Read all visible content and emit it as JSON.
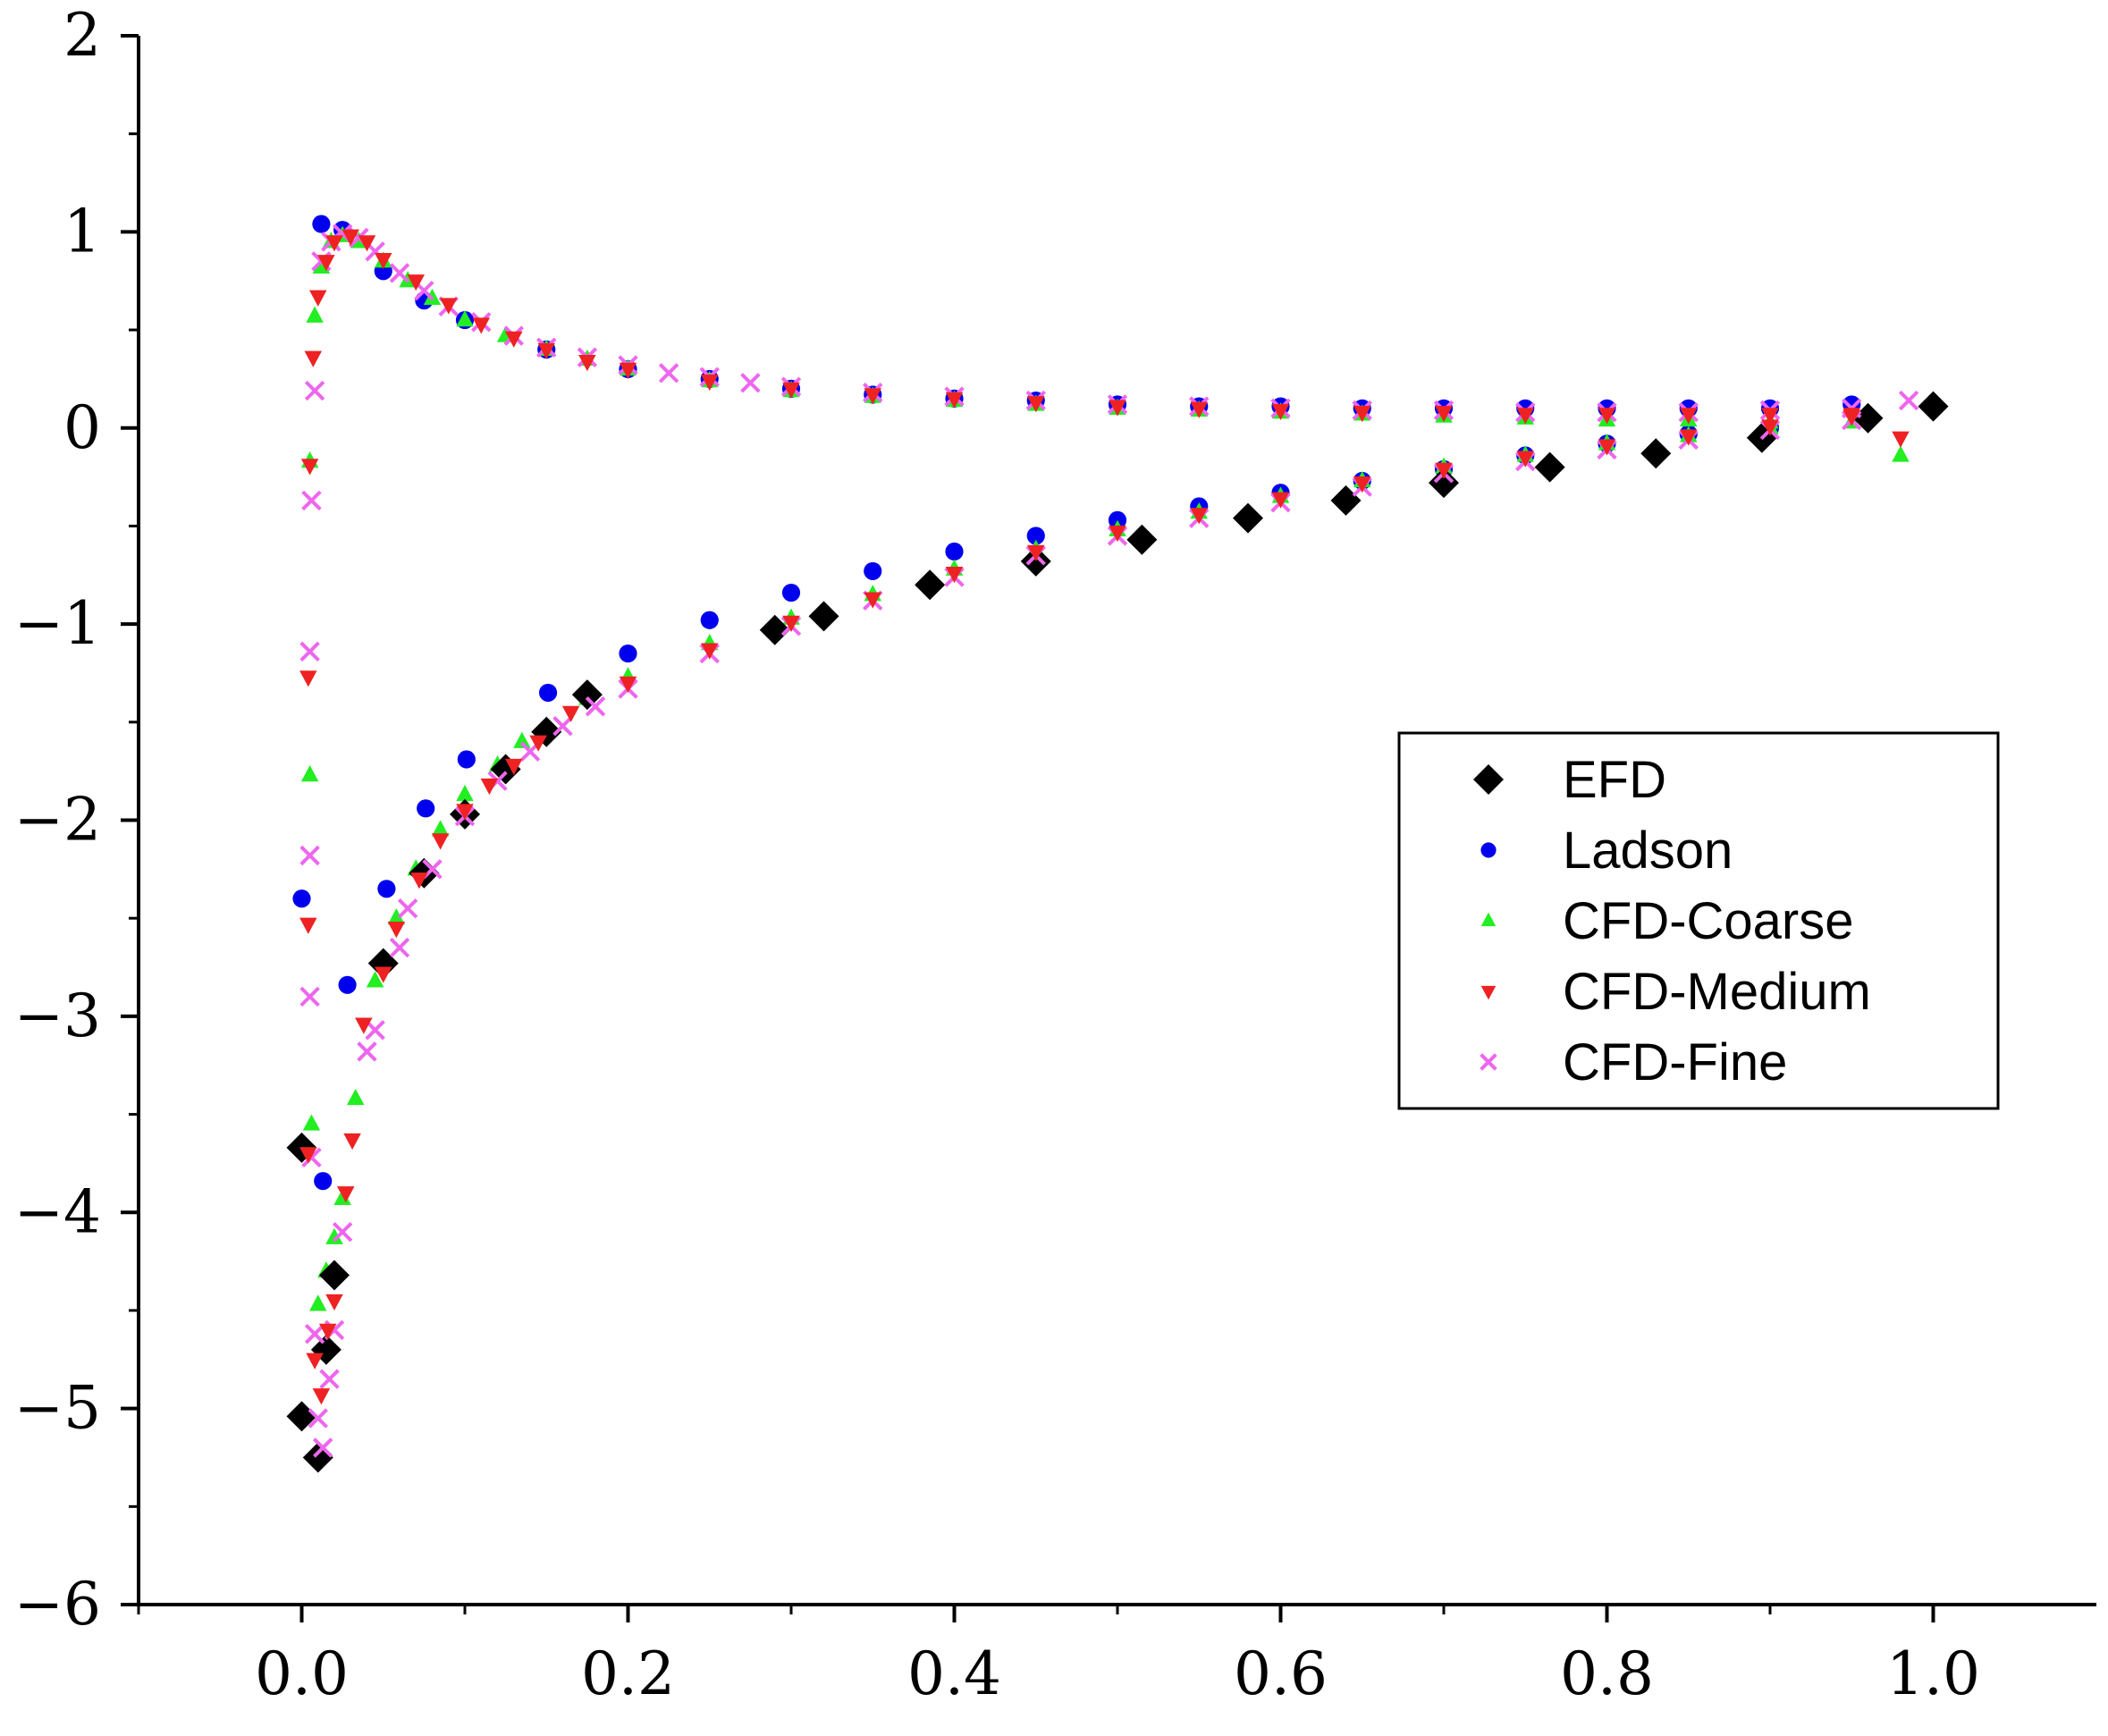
{
  "chart_data": {
    "type": "scatter",
    "xlim": [
      -0.1,
      1.1
    ],
    "ylim": [
      -6,
      2
    ],
    "x_ticks": [
      {
        "value": 0.0,
        "label": "0.0"
      },
      {
        "value": 0.2,
        "label": "0.2"
      },
      {
        "value": 0.4,
        "label": "0.4"
      },
      {
        "value": 0.6,
        "label": "0.6"
      },
      {
        "value": 0.8,
        "label": "0.8"
      },
      {
        "value": 1.0,
        "label": "1.0"
      }
    ],
    "y_ticks": [
      {
        "value": 2,
        "label": "2"
      },
      {
        "value": 1,
        "label": "1"
      },
      {
        "value": 0,
        "label": "0"
      },
      {
        "value": -1,
        "label": "−1"
      },
      {
        "value": -2,
        "label": "−2"
      },
      {
        "value": -3,
        "label": "−3"
      },
      {
        "value": -4,
        "label": "−4"
      },
      {
        "value": -5,
        "label": "−5"
      },
      {
        "value": -6,
        "label": "−6"
      }
    ],
    "grid": false,
    "legend_position": "center-right",
    "series": [
      {
        "name": "EFD",
        "marker": "diamond",
        "color": "#000000",
        "points": [
          [
            0.0,
            -3.67
          ],
          [
            0.0,
            -5.04
          ],
          [
            0.01,
            -5.25
          ],
          [
            0.015,
            -4.7
          ],
          [
            0.02,
            -4.32
          ],
          [
            0.05,
            -2.73
          ],
          [
            0.075,
            -2.27
          ],
          [
            0.1,
            -1.97
          ],
          [
            0.125,
            -1.74
          ],
          [
            0.15,
            -1.55
          ],
          [
            0.175,
            -1.36
          ],
          [
            0.29,
            -1.03
          ],
          [
            0.32,
            -0.96
          ],
          [
            0.385,
            -0.8
          ],
          [
            0.45,
            -0.68
          ],
          [
            0.515,
            -0.57
          ],
          [
            0.58,
            -0.46
          ],
          [
            0.64,
            -0.37
          ],
          [
            0.7,
            -0.28
          ],
          [
            0.765,
            -0.2
          ],
          [
            0.83,
            -0.13
          ],
          [
            0.895,
            -0.05
          ],
          [
            0.96,
            0.05
          ],
          [
            1.0,
            0.11
          ]
        ]
      },
      {
        "name": "Ladson",
        "marker": "circle",
        "color": "#0000ee",
        "points": [
          [
            0.012,
            1.04
          ],
          [
            0.025,
            1.01
          ],
          [
            0.05,
            0.8
          ],
          [
            0.075,
            0.65
          ],
          [
            0.1,
            0.55
          ],
          [
            0.15,
            0.4
          ],
          [
            0.2,
            0.3
          ],
          [
            0.25,
            0.25
          ],
          [
            0.3,
            0.2
          ],
          [
            0.35,
            0.17
          ],
          [
            0.4,
            0.15
          ],
          [
            0.45,
            0.14
          ],
          [
            0.5,
            0.12
          ],
          [
            0.55,
            0.11
          ],
          [
            0.6,
            0.11
          ],
          [
            0.65,
            0.1
          ],
          [
            0.7,
            0.1
          ],
          [
            0.75,
            0.1
          ],
          [
            0.8,
            0.1
          ],
          [
            0.85,
            0.1
          ],
          [
            0.9,
            0.1
          ],
          [
            0.95,
            0.12
          ],
          [
            0.0,
            -2.4
          ],
          [
            0.013,
            -3.84
          ],
          [
            0.028,
            -2.84
          ],
          [
            0.052,
            -2.35
          ],
          [
            0.076,
            -1.94
          ],
          [
            0.101,
            -1.69
          ],
          [
            0.151,
            -1.35
          ],
          [
            0.2,
            -1.15
          ],
          [
            0.25,
            -0.98
          ],
          [
            0.3,
            -0.84
          ],
          [
            0.35,
            -0.73
          ],
          [
            0.4,
            -0.63
          ],
          [
            0.45,
            -0.55
          ],
          [
            0.5,
            -0.47
          ],
          [
            0.55,
            -0.4
          ],
          [
            0.6,
            -0.33
          ],
          [
            0.65,
            -0.27
          ],
          [
            0.7,
            -0.21
          ],
          [
            0.75,
            -0.14
          ],
          [
            0.8,
            -0.08
          ],
          [
            0.85,
            -0.03
          ],
          [
            0.9,
            0.0
          ]
        ]
      },
      {
        "name": "CFD-Coarse",
        "marker": "triangle-up",
        "color": "#22ee22",
        "points": [
          [
            0.005,
            -0.17
          ],
          [
            0.008,
            0.57
          ],
          [
            0.012,
            0.82
          ],
          [
            0.018,
            0.95
          ],
          [
            0.025,
            0.98
          ],
          [
            0.035,
            0.95
          ],
          [
            0.05,
            0.85
          ],
          [
            0.065,
            0.75
          ],
          [
            0.08,
            0.66
          ],
          [
            0.1,
            0.55
          ],
          [
            0.125,
            0.47
          ],
          [
            0.15,
            0.4
          ],
          [
            0.175,
            0.35
          ],
          [
            0.2,
            0.3
          ],
          [
            0.25,
            0.24
          ],
          [
            0.3,
            0.19
          ],
          [
            0.35,
            0.16
          ],
          [
            0.4,
            0.14
          ],
          [
            0.45,
            0.12
          ],
          [
            0.5,
            0.1
          ],
          [
            0.55,
            0.09
          ],
          [
            0.6,
            0.08
          ],
          [
            0.65,
            0.07
          ],
          [
            0.7,
            0.06
          ],
          [
            0.75,
            0.05
          ],
          [
            0.8,
            0.04
          ],
          [
            0.85,
            0.04
          ],
          [
            0.9,
            0.03
          ],
          [
            0.95,
            0.03
          ],
          [
            0.98,
            -0.14
          ],
          [
            0.005,
            -1.77
          ],
          [
            0.006,
            -3.55
          ],
          [
            0.01,
            -4.47
          ],
          [
            0.015,
            -4.3
          ],
          [
            0.02,
            -4.13
          ],
          [
            0.025,
            -3.93
          ],
          [
            0.033,
            -3.42
          ],
          [
            0.045,
            -2.82
          ],
          [
            0.058,
            -2.5
          ],
          [
            0.07,
            -2.25
          ],
          [
            0.085,
            -2.05
          ],
          [
            0.1,
            -1.87
          ],
          [
            0.12,
            -1.72
          ],
          [
            0.135,
            -1.6
          ],
          [
            0.15,
            -1.52
          ],
          [
            0.175,
            -1.38
          ],
          [
            0.2,
            -1.27
          ],
          [
            0.25,
            -1.1
          ],
          [
            0.3,
            -0.97
          ],
          [
            0.35,
            -0.85
          ],
          [
            0.4,
            -0.72
          ],
          [
            0.45,
            -0.62
          ],
          [
            0.5,
            -0.52
          ],
          [
            0.55,
            -0.43
          ],
          [
            0.6,
            -0.35
          ],
          [
            0.65,
            -0.27
          ],
          [
            0.7,
            -0.2
          ],
          [
            0.75,
            -0.14
          ],
          [
            0.8,
            -0.08
          ],
          [
            0.85,
            -0.04
          ],
          [
            0.9,
            0.0
          ]
        ]
      },
      {
        "name": "CFD-Medium",
        "marker": "triangle-down",
        "color": "#ee2222",
        "points": [
          [
            0.005,
            -0.19
          ],
          [
            0.007,
            0.36
          ],
          [
            0.01,
            0.67
          ],
          [
            0.015,
            0.85
          ],
          [
            0.02,
            0.95
          ],
          [
            0.03,
            0.98
          ],
          [
            0.04,
            0.95
          ],
          [
            0.05,
            0.86
          ],
          [
            0.07,
            0.75
          ],
          [
            0.09,
            0.63
          ],
          [
            0.11,
            0.53
          ],
          [
            0.13,
            0.46
          ],
          [
            0.15,
            0.4
          ],
          [
            0.175,
            0.34
          ],
          [
            0.2,
            0.3
          ],
          [
            0.25,
            0.24
          ],
          [
            0.3,
            0.2
          ],
          [
            0.35,
            0.17
          ],
          [
            0.4,
            0.15
          ],
          [
            0.45,
            0.13
          ],
          [
            0.5,
            0.11
          ],
          [
            0.55,
            0.1
          ],
          [
            0.6,
            0.09
          ],
          [
            0.65,
            0.08
          ],
          [
            0.7,
            0.08
          ],
          [
            0.75,
            0.07
          ],
          [
            0.8,
            0.07
          ],
          [
            0.85,
            0.07
          ],
          [
            0.9,
            0.07
          ],
          [
            0.95,
            0.07
          ],
          [
            0.98,
            -0.05
          ],
          [
            0.004,
            -1.27
          ],
          [
            0.004,
            -2.53
          ],
          [
            0.004,
            -3.7
          ],
          [
            0.008,
            -4.75
          ],
          [
            0.012,
            -4.93
          ],
          [
            0.016,
            -4.6
          ],
          [
            0.02,
            -4.45
          ],
          [
            0.027,
            -3.9
          ],
          [
            0.031,
            -3.63
          ],
          [
            0.038,
            -3.04
          ],
          [
            0.05,
            -2.78
          ],
          [
            0.058,
            -2.55
          ],
          [
            0.072,
            -2.3
          ],
          [
            0.085,
            -2.1
          ],
          [
            0.1,
            -1.95
          ],
          [
            0.115,
            -1.82
          ],
          [
            0.13,
            -1.72
          ],
          [
            0.145,
            -1.6
          ],
          [
            0.165,
            -1.45
          ],
          [
            0.2,
            -1.3
          ],
          [
            0.25,
            -1.13
          ],
          [
            0.3,
            -0.99
          ],
          [
            0.35,
            -0.87
          ],
          [
            0.4,
            -0.74
          ],
          [
            0.45,
            -0.63
          ],
          [
            0.5,
            -0.53
          ],
          [
            0.55,
            -0.44
          ],
          [
            0.6,
            -0.36
          ],
          [
            0.65,
            -0.28
          ],
          [
            0.7,
            -0.21
          ],
          [
            0.75,
            -0.15
          ],
          [
            0.8,
            -0.09
          ],
          [
            0.85,
            -0.04
          ],
          [
            0.9,
            0.01
          ],
          [
            0.95,
            0.06
          ]
        ]
      },
      {
        "name": "CFD-Fine",
        "marker": "x",
        "color": "#ee66ee",
        "points": [
          [
            0.006,
            -0.37
          ],
          [
            0.008,
            0.19
          ],
          [
            0.012,
            0.85
          ],
          [
            0.018,
            0.95
          ],
          [
            0.025,
            0.99
          ],
          [
            0.035,
            0.97
          ],
          [
            0.045,
            0.9
          ],
          [
            0.06,
            0.79
          ],
          [
            0.075,
            0.7
          ],
          [
            0.09,
            0.62
          ],
          [
            0.11,
            0.54
          ],
          [
            0.13,
            0.47
          ],
          [
            0.15,
            0.41
          ],
          [
            0.175,
            0.36
          ],
          [
            0.2,
            0.32
          ],
          [
            0.225,
            0.28
          ],
          [
            0.25,
            0.26
          ],
          [
            0.275,
            0.23
          ],
          [
            0.3,
            0.21
          ],
          [
            0.35,
            0.18
          ],
          [
            0.4,
            0.16
          ],
          [
            0.45,
            0.14
          ],
          [
            0.5,
            0.12
          ],
          [
            0.55,
            0.11
          ],
          [
            0.6,
            0.1
          ],
          [
            0.65,
            0.09
          ],
          [
            0.7,
            0.09
          ],
          [
            0.75,
            0.08
          ],
          [
            0.8,
            0.08
          ],
          [
            0.85,
            0.08
          ],
          [
            0.9,
            0.09
          ],
          [
            0.95,
            0.1
          ],
          [
            0.985,
            0.14
          ],
          [
            0.005,
            -1.14
          ],
          [
            0.005,
            -2.18
          ],
          [
            0.005,
            -2.9
          ],
          [
            0.006,
            -3.72
          ],
          [
            0.008,
            -4.62
          ],
          [
            0.01,
            -5.05
          ],
          [
            0.013,
            -5.2
          ],
          [
            0.017,
            -4.85
          ],
          [
            0.02,
            -4.6
          ],
          [
            0.025,
            -4.1
          ],
          [
            0.04,
            -3.18
          ],
          [
            0.045,
            -3.07
          ],
          [
            0.06,
            -2.65
          ],
          [
            0.065,
            -2.45
          ],
          [
            0.08,
            -2.25
          ],
          [
            0.1,
            -1.98
          ],
          [
            0.12,
            -1.8
          ],
          [
            0.14,
            -1.65
          ],
          [
            0.16,
            -1.52
          ],
          [
            0.18,
            -1.42
          ],
          [
            0.2,
            -1.33
          ],
          [
            0.25,
            -1.15
          ],
          [
            0.3,
            -1.01
          ],
          [
            0.35,
            -0.88
          ],
          [
            0.4,
            -0.76
          ],
          [
            0.45,
            -0.65
          ],
          [
            0.5,
            -0.55
          ],
          [
            0.55,
            -0.46
          ],
          [
            0.6,
            -0.38
          ],
          [
            0.65,
            -0.3
          ],
          [
            0.7,
            -0.23
          ],
          [
            0.75,
            -0.17
          ],
          [
            0.8,
            -0.11
          ],
          [
            0.85,
            -0.06
          ],
          [
            0.9,
            -0.01
          ],
          [
            0.95,
            0.04
          ]
        ]
      }
    ]
  }
}
